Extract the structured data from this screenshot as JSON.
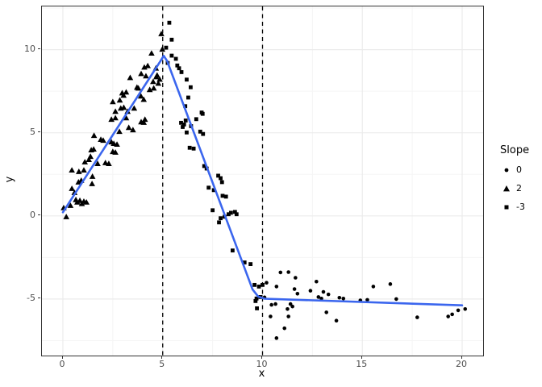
{
  "legend": {
    "title": "Slope",
    "items": [
      {
        "shape": "circle",
        "label": "0"
      },
      {
        "shape": "triangle",
        "label": "2"
      },
      {
        "shape": "square",
        "label": "-3"
      }
    ]
  },
  "chart_data": {
    "type": "scatter",
    "title": "",
    "xlabel": "x",
    "ylabel": "y",
    "xlim": [
      -1.05,
      21.05
    ],
    "ylim": [
      -8.4,
      12.6
    ],
    "x_ticks": [
      0,
      5,
      10,
      15,
      20
    ],
    "y_ticks": [
      -5,
      0,
      5,
      10
    ],
    "x_minor": [
      2.5,
      7.5,
      12.5,
      17.5
    ],
    "y_minor": [
      -7.5,
      -2.5,
      2.5,
      7.5,
      12.5
    ],
    "grid": true,
    "legend_position": "right",
    "colors": {
      "smooth_line": "#3B66EE",
      "point": "#000000",
      "vline": "#000000",
      "grid_major": "#EBEBEB",
      "grid_minor": "#F5F5F5",
      "panel_border": "#333333",
      "tick_text": "#4D4D4D",
      "axis_title": "#000000"
    },
    "vlines": {
      "x": [
        5,
        10
      ],
      "style": "dashed"
    },
    "smooth_line": {
      "breakpoints": [
        [
          0,
          0.2
        ],
        [
          5,
          9.6
        ],
        [
          10,
          -5.0
        ],
        [
          20,
          -5.4
        ]
      ],
      "draw_points": [
        [
          0,
          0.22
        ],
        [
          4.88,
          9.3
        ],
        [
          5.05,
          9.63
        ],
        [
          5.22,
          9.32
        ],
        [
          9.5,
          -4.42
        ],
        [
          9.78,
          -4.85
        ],
        [
          10.1,
          -4.98
        ],
        [
          10.6,
          -5.0
        ],
        [
          20,
          -5.38
        ]
      ]
    },
    "series": [
      {
        "name": "0",
        "shape": "circle",
        "points": [
          [
            10.1,
            -4.9
          ],
          [
            10.2,
            -4.02
          ],
          [
            10.45,
            -5.35
          ],
          [
            10.4,
            -6.05
          ],
          [
            10.65,
            -5.3
          ],
          [
            10.7,
            -4.25
          ],
          [
            10.7,
            -7.35
          ],
          [
            10.9,
            -3.4
          ],
          [
            11.1,
            -6.76
          ],
          [
            11.25,
            -5.6
          ],
          [
            11.3,
            -3.38
          ],
          [
            11.3,
            -6.05
          ],
          [
            11.4,
            -5.3
          ],
          [
            11.5,
            -5.45
          ],
          [
            11.6,
            -4.4
          ],
          [
            11.65,
            -3.72
          ],
          [
            11.75,
            -4.68
          ],
          [
            12.4,
            -4.5
          ],
          [
            12.7,
            -3.95
          ],
          [
            12.8,
            -4.88
          ],
          [
            12.95,
            -4.97
          ],
          [
            13.05,
            -4.57
          ],
          [
            13.3,
            -4.72
          ],
          [
            13.2,
            -5.8
          ],
          [
            13.7,
            -6.3
          ],
          [
            13.85,
            -4.92
          ],
          [
            14.05,
            -4.97
          ],
          [
            14.9,
            -5.08
          ],
          [
            15.25,
            -5.05
          ],
          [
            15.55,
            -4.25
          ],
          [
            16.4,
            -4.1
          ],
          [
            16.7,
            -5.0
          ],
          [
            17.75,
            -6.1
          ],
          [
            19.3,
            -6.05
          ],
          [
            19.5,
            -5.92
          ],
          [
            19.8,
            -5.68
          ],
          [
            20.15,
            -5.6
          ]
        ]
      },
      {
        "name": "2",
        "shape": "triangle",
        "points": [
          [
            0.04,
            0.48
          ],
          [
            0.17,
            -0.06
          ],
          [
            0.38,
            0.62
          ],
          [
            0.45,
            1.64
          ],
          [
            0.58,
            1.4
          ],
          [
            0.65,
            0.97
          ],
          [
            0.72,
            0.82
          ],
          [
            0.85,
            0.92
          ],
          [
            0.95,
            0.73
          ],
          [
            1.05,
            0.87
          ],
          [
            1.18,
            0.82
          ],
          [
            0.45,
            2.75
          ],
          [
            0.78,
            2.03
          ],
          [
            0.8,
            2.66
          ],
          [
            0.92,
            2.13
          ],
          [
            1.05,
            2.75
          ],
          [
            1.1,
            3.24
          ],
          [
            1.3,
            3.38
          ],
          [
            1.38,
            3.57
          ],
          [
            1.42,
            3.96
          ],
          [
            1.46,
            1.93
          ],
          [
            1.48,
            2.37
          ],
          [
            1.54,
            4.01
          ],
          [
            1.56,
            4.83
          ],
          [
            1.74,
            3.14
          ],
          [
            1.9,
            4.59
          ],
          [
            2.02,
            4.54
          ],
          [
            2.13,
            3.19
          ],
          [
            2.3,
            3.14
          ],
          [
            2.43,
            4.44
          ],
          [
            2.55,
            4.35
          ],
          [
            2.71,
            4.3
          ],
          [
            2.5,
            3.86
          ],
          [
            2.63,
            3.82
          ],
          [
            2.43,
            5.8
          ],
          [
            2.63,
            5.89
          ],
          [
            2.83,
            5.07
          ],
          [
            2.5,
            6.86
          ],
          [
            2.85,
            6.96
          ],
          [
            2.9,
            6.47
          ],
          [
            3.05,
            6.52
          ],
          [
            2.63,
            6.28
          ],
          [
            3.24,
            6.28
          ],
          [
            2.97,
            7.39
          ],
          [
            3.17,
            7.44
          ],
          [
            3.04,
            7.25
          ],
          [
            3.17,
            5.89
          ],
          [
            3.3,
            5.31
          ],
          [
            3.51,
            5.17
          ],
          [
            3.37,
            8.31
          ],
          [
            3.57,
            6.47
          ],
          [
            3.71,
            7.73
          ],
          [
            3.78,
            7.68
          ],
          [
            3.92,
            8.55
          ],
          [
            3.92,
            5.65
          ],
          [
            4.05,
            5.62
          ],
          [
            3.91,
            7.2
          ],
          [
            4.05,
            7.0
          ],
          [
            4.08,
            8.94
          ],
          [
            4.11,
            5.8
          ],
          [
            4.16,
            8.41
          ],
          [
            4.25,
            9.03
          ],
          [
            4.35,
            7.59
          ],
          [
            4.44,
            9.78
          ],
          [
            4.52,
            8.07
          ],
          [
            4.55,
            7.68
          ],
          [
            4.66,
            8.88
          ],
          [
            4.68,
            8.36
          ],
          [
            4.72,
            8.46
          ],
          [
            4.78,
            7.97
          ],
          [
            4.85,
            8.21
          ],
          [
            4.93,
            10.95
          ],
          [
            4.98,
            10.02
          ]
        ]
      },
      {
        "name": "-3",
        "shape": "square",
        "points": [
          [
            5.17,
            10.12
          ],
          [
            5.33,
            11.62
          ],
          [
            5.45,
            10.6
          ],
          [
            5.45,
            9.64
          ],
          [
            5.66,
            9.45
          ],
          [
            5.25,
            9.2
          ],
          [
            5.73,
            9.05
          ],
          [
            5.82,
            8.88
          ],
          [
            5.94,
            8.65
          ],
          [
            6.2,
            8.2
          ],
          [
            6.4,
            7.74
          ],
          [
            6.28,
            7.12
          ],
          [
            6.13,
            6.6
          ],
          [
            6.95,
            6.22
          ],
          [
            6.68,
            5.82
          ],
          [
            6.42,
            5.4
          ],
          [
            6.15,
            5.74
          ],
          [
            5.92,
            5.6
          ],
          [
            6.0,
            5.35
          ],
          [
            6.07,
            5.5
          ],
          [
            7.0,
            6.14
          ],
          [
            6.88,
            5.07
          ],
          [
            7.02,
            4.93
          ],
          [
            6.2,
            5.02
          ],
          [
            6.35,
            4.1
          ],
          [
            6.55,
            4.05
          ],
          [
            7.08,
            3.0
          ],
          [
            7.2,
            2.85
          ],
          [
            7.5,
            0.34
          ],
          [
            7.56,
            1.55
          ],
          [
            7.3,
            1.7
          ],
          [
            7.78,
            2.42
          ],
          [
            7.9,
            2.27
          ],
          [
            7.97,
            2.03
          ],
          [
            8.17,
            1.16
          ],
          [
            8.0,
            1.21
          ],
          [
            7.9,
            -0.14
          ],
          [
            8.1,
            -0.05
          ],
          [
            8.3,
            0.1
          ],
          [
            8.42,
            0.19
          ],
          [
            8.62,
            0.24
          ],
          [
            8.7,
            0.1
          ],
          [
            7.82,
            -0.39
          ],
          [
            8.5,
            -2.08
          ],
          [
            9.1,
            -2.8
          ],
          [
            9.4,
            -2.9
          ],
          [
            9.6,
            -4.15
          ],
          [
            9.82,
            -4.25
          ],
          [
            9.7,
            -4.97
          ],
          [
            9.9,
            -4.88
          ],
          [
            9.65,
            -5.12
          ],
          [
            9.72,
            -5.56
          ],
          [
            10.0,
            -4.15
          ]
        ]
      }
    ]
  }
}
